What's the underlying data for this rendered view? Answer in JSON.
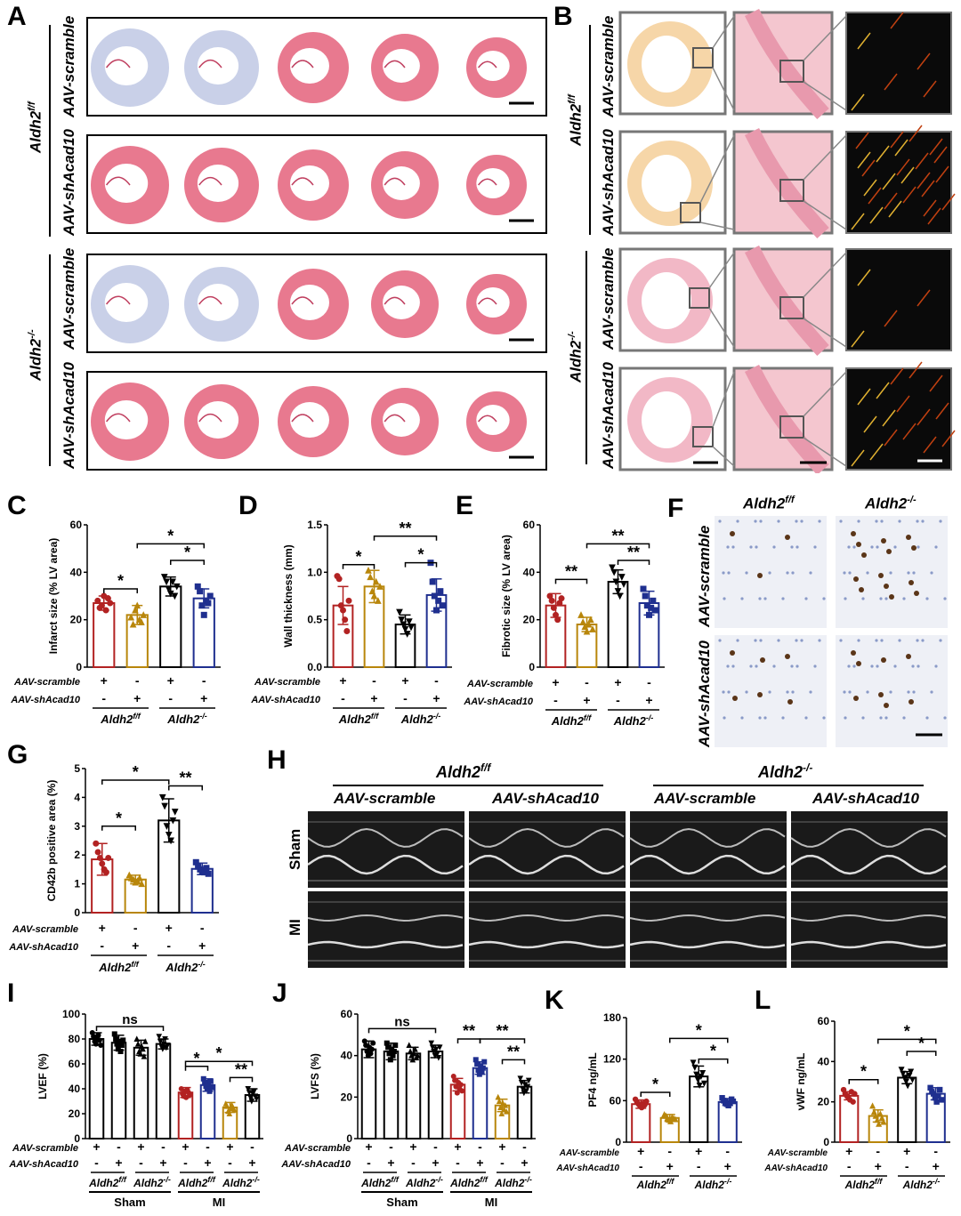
{
  "panels": {
    "A": "A",
    "B": "B",
    "C": "C",
    "D": "D",
    "E": "E",
    "F": "F",
    "G": "G",
    "H": "H",
    "I": "I",
    "J": "J",
    "K": "K",
    "L": "L"
  },
  "genotypes": {
    "ff_base": "Aldh2",
    "ff_sup": "f/f",
    "ko_base": "Aldh2",
    "ko_sup": "-/-"
  },
  "treatments": {
    "scr": "AAV-scramble",
    "sh": "AAV-shAcad10"
  },
  "conditions": {
    "sham": "Sham",
    "mi": "MI"
  },
  "sig": {
    "one": "*",
    "two": "**",
    "ns": "ns"
  },
  "signs": {
    "plus": "+",
    "minus": "-"
  },
  "colors": {
    "red": "#b22222",
    "gold": "#b8860b",
    "black": "#000000",
    "blue": "#1f2f8f",
    "tissue": "#e8798f",
    "tissue_fib": "#a8b8d8"
  },
  "chart_data": [
    {
      "id": "C",
      "type": "bar",
      "ylabel": "Infarct size (% LV area)",
      "ylim": [
        0,
        60
      ],
      "ticks": [
        0,
        20,
        40,
        60
      ],
      "categories": [
        "Aldh2f/f AAV-scramble",
        "Aldh2f/f AAV-shAcad10",
        "Aldh2-/- AAV-scramble",
        "Aldh2-/- AAV-shAcad10"
      ],
      "values": [
        27,
        22,
        34,
        29
      ],
      "errors": [
        3,
        4,
        4,
        4
      ],
      "points": [
        [
          28,
          25,
          26,
          30,
          24,
          29,
          27
        ],
        [
          21,
          18,
          24,
          26,
          20,
          19,
          22
        ],
        [
          38,
          36,
          33,
          31,
          36,
          30,
          34
        ],
        [
          34,
          32,
          26,
          22,
          28,
          27,
          30
        ]
      ]
    },
    {
      "id": "D",
      "type": "bar",
      "ylabel": "Wall thickness (mm)",
      "ylim": [
        0,
        1.5
      ],
      "ticks": [
        0.0,
        0.5,
        1.0,
        1.5
      ],
      "categories": [
        "Aldh2f/f AAV-scramble",
        "Aldh2f/f AAV-shAcad10",
        "Aldh2-/- AAV-scramble",
        "Aldh2-/- AAV-shAcad10"
      ],
      "values": [
        0.65,
        0.85,
        0.45,
        0.76
      ],
      "errors": [
        0.2,
        0.17,
        0.1,
        0.17
      ],
      "points": [
        [
          0.96,
          0.93,
          0.65,
          0.6,
          0.5,
          0.38,
          0.7
        ],
        [
          1.02,
          0.95,
          0.8,
          0.75,
          0.9,
          0.7,
          0.85
        ],
        [
          0.58,
          0.5,
          0.45,
          0.4,
          0.35,
          0.48,
          0.42
        ],
        [
          1.1,
          0.9,
          0.75,
          0.6,
          0.7,
          0.8,
          0.65
        ]
      ]
    },
    {
      "id": "E",
      "type": "bar",
      "ylabel": "Fibrotic size (% LV area)",
      "ylim": [
        0,
        60
      ],
      "ticks": [
        0,
        20,
        40,
        60
      ],
      "categories": [
        "Aldh2f/f AAV-scramble",
        "Aldh2f/f AAV-shAcad10",
        "Aldh2-/- AAV-scramble",
        "Aldh2-/- AAV-shAcad10"
      ],
      "values": [
        26,
        18,
        36,
        27
      ],
      "errors": [
        5,
        3,
        5,
        5
      ],
      "points": [
        [
          30,
          28,
          25,
          22,
          20,
          27,
          29
        ],
        [
          22,
          19,
          17,
          15,
          18,
          20,
          16
        ],
        [
          42,
          40,
          36,
          32,
          30,
          38,
          35
        ],
        [
          33,
          30,
          26,
          22,
          25,
          28,
          24
        ]
      ]
    },
    {
      "id": "G",
      "type": "bar",
      "ylabel": "CD42b positive area (%)",
      "ylim": [
        0,
        5
      ],
      "ticks": [
        0,
        1,
        2,
        3,
        4,
        5
      ],
      "categories": [
        "Aldh2f/f AAV-scramble",
        "Aldh2f/f AAV-shAcad10",
        "Aldh2-/- AAV-scramble",
        "Aldh2-/- AAV-shAcad10"
      ],
      "values": [
        1.85,
        1.15,
        3.2,
        1.52
      ],
      "errors": [
        0.55,
        0.15,
        0.75,
        0.2
      ],
      "points": [
        [
          2.4,
          2.1,
          1.9,
          1.7,
          1.5,
          1.4,
          1.9
        ],
        [
          1.3,
          1.2,
          1.15,
          1.05,
          1.1,
          1.2,
          1.0
        ],
        [
          4.0,
          3.7,
          3.0,
          2.7,
          2.5,
          3.2,
          3.5
        ],
        [
          1.75,
          1.6,
          1.5,
          1.45,
          1.4,
          1.55,
          1.35
        ]
      ]
    },
    {
      "id": "I",
      "type": "bar",
      "ylabel": "LVEF (%)",
      "ylim": [
        0,
        100
      ],
      "ticks": [
        0,
        20,
        40,
        60,
        80,
        100
      ],
      "categories": [
        "Sham Aldh2f/f scr",
        "Sham Aldh2f/f sh",
        "Sham Aldh2-/- scr",
        "Sham Aldh2-/- sh",
        "MI Aldh2f/f scr",
        "MI Aldh2f/f sh",
        "MI Aldh2-/- scr",
        "MI Aldh2-/- sh"
      ],
      "values": [
        80,
        77,
        73,
        76,
        37,
        43,
        25,
        35
      ],
      "errors": [
        5,
        6,
        6,
        4,
        4,
        5,
        4,
        5
      ],
      "points": [
        [
          85,
          82,
          78,
          76,
          80,
          83,
          79,
          75
        ],
        [
          84,
          80,
          76,
          72,
          78,
          70,
          75,
          79
        ],
        [
          80,
          76,
          70,
          68,
          74,
          72,
          66,
          78
        ],
        [
          82,
          78,
          74,
          72,
          76,
          80,
          73,
          75
        ],
        [
          40,
          36,
          34,
          38,
          33,
          39,
          37,
          35
        ],
        [
          48,
          45,
          42,
          40,
          44,
          38,
          46,
          41
        ],
        [
          28,
          26,
          22,
          20,
          24,
          27,
          25,
          23
        ],
        [
          40,
          37,
          33,
          30,
          36,
          38,
          34,
          32
        ]
      ]
    },
    {
      "id": "J",
      "type": "bar",
      "ylabel": "LVFS (%)",
      "ylim": [
        0,
        60
      ],
      "ticks": [
        0,
        20,
        40,
        60
      ],
      "categories": [
        "Sham Aldh2f/f scr",
        "Sham Aldh2f/f sh",
        "Sham Aldh2-/- scr",
        "Sham Aldh2-/- sh",
        "MI Aldh2f/f scr",
        "MI Aldh2f/f sh",
        "MI Aldh2-/- scr",
        "MI Aldh2-/- sh"
      ],
      "values": [
        43,
        42,
        41,
        42,
        26,
        34,
        16,
        25
      ],
      "errors": [
        4,
        4,
        3,
        3,
        3,
        3,
        3,
        3
      ],
      "points": [
        [
          47,
          45,
          42,
          40,
          44,
          41,
          43,
          46
        ],
        [
          46,
          44,
          41,
          38,
          43,
          40,
          42,
          45
        ],
        [
          45,
          42,
          40,
          38,
          41,
          43,
          39,
          40
        ],
        [
          46,
          44,
          42,
          40,
          43,
          41,
          39,
          44
        ],
        [
          30,
          28,
          25,
          22,
          27,
          24,
          26,
          23
        ],
        [
          38,
          36,
          33,
          31,
          35,
          32,
          34,
          37
        ],
        [
          20,
          18,
          15,
          12,
          17,
          14,
          16,
          13
        ],
        [
          29,
          27,
          24,
          22,
          26,
          23,
          25,
          28
        ]
      ]
    },
    {
      "id": "K",
      "type": "bar",
      "ylabel": "PF4 ng/mL",
      "ylim": [
        0,
        180
      ],
      "ticks": [
        0,
        60,
        120,
        180
      ],
      "categories": [
        "Aldh2f/f AAV-scramble",
        "Aldh2f/f AAV-shAcad10",
        "Aldh2-/- AAV-scramble",
        "Aldh2-/- AAV-shAcad10"
      ],
      "values": [
        55,
        35,
        95,
        58
      ],
      "errors": [
        6,
        5,
        15,
        5
      ],
      "points": [
        [
          62,
          58,
          55,
          52,
          50,
          56,
          54,
          59
        ],
        [
          40,
          38,
          35,
          32,
          30,
          36,
          34,
          33
        ],
        [
          115,
          108,
          98,
          90,
          82,
          95,
          100,
          85
        ],
        [
          64,
          60,
          58,
          55,
          53,
          57,
          62,
          59
        ]
      ]
    },
    {
      "id": "L",
      "type": "bar",
      "ylabel": "vWF ng/mL",
      "ylim": [
        0,
        60
      ],
      "ticks": [
        0,
        20,
        40,
        60
      ],
      "categories": [
        "Aldh2f/f AAV-scramble",
        "Aldh2f/f AAV-shAcad10",
        "Aldh2-/- AAV-scramble",
        "Aldh2-/- AAV-shAcad10"
      ],
      "values": [
        23,
        13,
        32,
        24
      ],
      "errors": [
        2,
        3,
        3,
        3
      ],
      "points": [
        [
          26,
          24,
          23,
          22,
          21,
          25,
          20,
          24
        ],
        [
          18,
          15,
          13,
          11,
          9,
          14,
          12,
          10
        ],
        [
          36,
          34,
          32,
          30,
          28,
          33,
          35,
          31
        ],
        [
          27,
          25,
          24,
          22,
          20,
          23,
          26,
          21
        ]
      ]
    }
  ]
}
